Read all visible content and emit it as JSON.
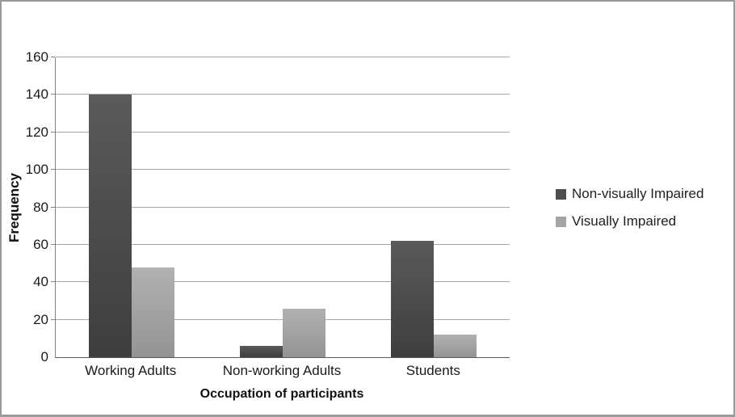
{
  "figure": {
    "background": "#ffffff",
    "border_color": "#9a9a9a",
    "axis_line_color": "#808080",
    "baseline_color": "#595959",
    "gridline_color": "#a6a6a6",
    "text_color": "#1a1a1a"
  },
  "chart_data": {
    "type": "bar",
    "title": "",
    "xlabel": "Occupation of participants",
    "ylabel": "Frequency",
    "categories": [
      "Working Adults",
      "Non-working Adults",
      "Students"
    ],
    "series": [
      {
        "name": "Non-visually Impaired",
        "values": [
          140,
          6,
          62
        ],
        "color": "#4d4d4d",
        "gradient": [
          "#5a5a5a",
          "#3e3e3e"
        ]
      },
      {
        "name": "Visually Impaired",
        "values": [
          48,
          26,
          12
        ],
        "color": "#a4a4a4",
        "gradient": [
          "#b1b1b1",
          "#949494"
        ]
      }
    ],
    "ylim": [
      0,
      160
    ],
    "yticks": [
      0,
      20,
      40,
      60,
      80,
      100,
      120,
      140,
      160
    ],
    "grid": "horizontal",
    "legend_position": "right"
  }
}
